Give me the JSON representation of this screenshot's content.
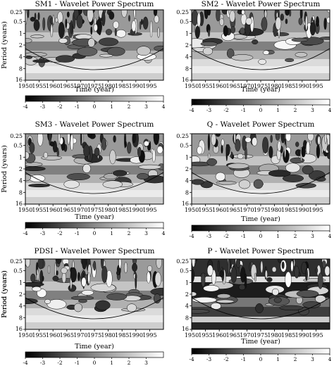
{
  "chart_data": [
    {
      "type": "heatmap",
      "title": "SM1 - Wavelet Power Spectrum",
      "xlabel": "Time (year)",
      "ylabel": "Period (years)",
      "xlim": [
        1950,
        2000
      ],
      "ylim": [
        0.25,
        16
      ],
      "y_scale": "log2",
      "x_ticks": [
        "1950",
        "1955",
        "1960",
        "1965",
        "1970",
        "1975",
        "1980",
        "1985",
        "1990",
        "1995"
      ],
      "y_ticks": [
        "0.25",
        "0.5",
        "1",
        "2",
        "4",
        "8",
        "16"
      ],
      "colorbar": {
        "ticks": [
          "-4",
          "-3",
          "-2",
          "-1",
          "0",
          "1",
          "2",
          "3",
          "4"
        ],
        "range": [
          -4,
          4
        ]
      }
    },
    {
      "type": "heatmap",
      "title": "SM2 - Wavelet Power Spectrum",
      "xlabel": "Time (year)",
      "ylabel": "",
      "xlim": [
        1950,
        2000
      ],
      "ylim": [
        0.25,
        16
      ],
      "y_scale": "log2",
      "x_ticks": [
        "1950",
        "1955",
        "1960",
        "1965",
        "1970",
        "1975",
        "1980",
        "1985",
        "1990",
        "1995"
      ],
      "y_ticks": [
        "0.25",
        "0.5",
        "1",
        "2",
        "4",
        "8",
        "16"
      ],
      "colorbar": {
        "ticks": [
          "-4",
          "-3",
          "-2",
          "-1",
          "0",
          "1",
          "2",
          "3",
          "4"
        ],
        "range": [
          -4,
          4
        ]
      }
    },
    {
      "type": "heatmap",
      "title": "SM3 - Wavelet Power Spectrum",
      "xlabel": "Time (year)",
      "ylabel": "Period (years)",
      "xlim": [
        1950,
        2000
      ],
      "ylim": [
        0.25,
        16
      ],
      "y_scale": "log2",
      "x_ticks": [
        "1950",
        "1955",
        "1960",
        "1965",
        "1970",
        "1975",
        "1980",
        "1985",
        "1990",
        "1995"
      ],
      "y_ticks": [
        "0.25",
        "0.5",
        "1",
        "2",
        "4",
        "8",
        "16"
      ],
      "colorbar": {
        "ticks": [
          "-4",
          "-3",
          "-2",
          "-1",
          "0",
          "1",
          "2",
          "3",
          "4"
        ],
        "range": [
          -4,
          4
        ]
      }
    },
    {
      "type": "heatmap",
      "title": "Q - Wavelet Power Spectrum",
      "xlabel": "Time (year)",
      "ylabel": "",
      "xlim": [
        1950,
        2000
      ],
      "ylim": [
        0.25,
        16
      ],
      "y_scale": "log2",
      "x_ticks": [
        "1950",
        "1955",
        "1960",
        "1965",
        "1970",
        "1975",
        "1980",
        "1985",
        "1990",
        "1995"
      ],
      "y_ticks": [
        "0.25",
        "0.5",
        "1",
        "2",
        "4",
        "8",
        "16"
      ],
      "colorbar": {
        "ticks": [
          "-4",
          "-3",
          "-2",
          "-1",
          "0",
          "1",
          "2",
          "3",
          "4"
        ],
        "range": [
          -4,
          4
        ]
      }
    },
    {
      "type": "heatmap",
      "title": "PDSI - Wavelet Power Spectrum",
      "xlabel": "Time (year)",
      "ylabel": "Period (years)",
      "xlim": [
        1950,
        2000
      ],
      "ylim": [
        0.25,
        16
      ],
      "y_scale": "log2",
      "x_ticks": [
        "1950",
        "1955",
        "1960",
        "1965",
        "1970",
        "1975",
        "1980",
        "1985",
        "1990",
        "1995"
      ],
      "y_ticks": [
        "0.25",
        "0.5",
        "1",
        "2",
        "4",
        "8",
        "16"
      ],
      "colorbar": {
        "ticks": [
          "-4",
          "-3",
          "-2",
          "-1",
          "0",
          "1",
          "2",
          "3"
        ],
        "range": [
          -4,
          4
        ]
      }
    },
    {
      "type": "heatmap",
      "title": "P - Wavelet Power Spectrum",
      "xlabel": "Time (year)",
      "ylabel": "Period (years)",
      "xlim": [
        1950,
        2000
      ],
      "ylim": [
        0.25,
        16
      ],
      "y_scale": "log2",
      "x_ticks": [
        "1950",
        "1955",
        "1960",
        "1965",
        "1970",
        "1975",
        "1980",
        "1985",
        "1990",
        "1995"
      ],
      "y_ticks": [
        "0.25",
        "0.5",
        "1",
        "2",
        "4",
        "8",
        "16"
      ],
      "colorbar": {
        "ticks": [
          "-4",
          "-3",
          "-2",
          "-1",
          "0",
          "1",
          "2",
          "3",
          "4"
        ],
        "range": [
          -4,
          4
        ]
      }
    }
  ]
}
